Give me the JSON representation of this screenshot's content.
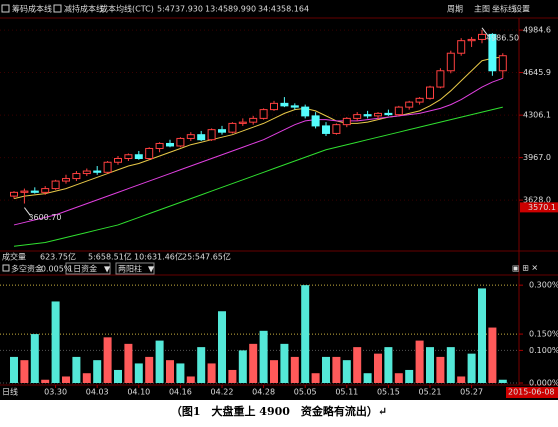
{
  "toolbar": {
    "items": [
      "筹码成本线",
      "减持成本线",
      "成本均线(CTC)"
    ],
    "right": [
      "周期",
      "主图",
      "坐标线",
      "设置"
    ]
  },
  "volume_row": {
    "label": "成交量",
    "items": [
      "623.75亿",
      "5:658.51亿",
      "10:631.46亿",
      "25:547.65亿"
    ]
  },
  "indicator_header": {
    "name": "多空资金",
    "value": "-0.005%",
    "selects": [
      "1日资金",
      "两阳柱"
    ]
  },
  "period_label": "日线",
  "cursor_label": "2015-06-08",
  "caption": "（图1　大盘重上 4900　资金略有流出）↵",
  "chart_data": [
    {
      "type": "candlestick",
      "categories": [
        null,
        null,
        null,
        null,
        "03.30",
        null,
        null,
        null,
        "04.03",
        null,
        null,
        null,
        "04.10",
        null,
        null,
        null,
        "04.16",
        null,
        null,
        null,
        "04.22",
        null,
        null,
        null,
        "04.28",
        null,
        null,
        null,
        "05.05",
        null,
        null,
        null,
        "05.11",
        null,
        null,
        null,
        "05.15",
        null,
        null,
        null,
        "05.21",
        null,
        null,
        null,
        "05.27",
        null,
        null,
        null
      ],
      "open": [
        3660,
        3690,
        3700,
        3690,
        3720,
        3780,
        3800,
        3840,
        3860,
        3850,
        3930,
        3960,
        3990,
        3960,
        4040,
        4080,
        4060,
        4120,
        4150,
        4110,
        4190,
        4170,
        4240,
        4250,
        4280,
        4350,
        4400,
        4380,
        4370,
        4300,
        4220,
        4160,
        4230,
        4280,
        4310,
        4300,
        4320,
        4310,
        4370,
        4410,
        4440,
        4530,
        4660,
        4800,
        4900,
        4910,
        4950,
        4660
      ],
      "high": [
        3700,
        3720,
        3730,
        3740,
        3790,
        3830,
        3860,
        3880,
        3900,
        3940,
        3980,
        4000,
        4020,
        4050,
        4090,
        4110,
        4130,
        4170,
        4180,
        4200,
        4220,
        4250,
        4280,
        4300,
        4360,
        4420,
        4450,
        4400,
        4390,
        4330,
        4250,
        4240,
        4290,
        4330,
        4340,
        4330,
        4350,
        4380,
        4420,
        4450,
        4540,
        4680,
        4820,
        4920,
        4930,
        4986.5,
        4960,
        4800
      ],
      "low": [
        3640,
        3600.7,
        3680,
        3670,
        3710,
        3760,
        3780,
        3820,
        3830,
        3840,
        3910,
        3940,
        3950,
        3950,
        4010,
        4050,
        4050,
        4100,
        4100,
        4100,
        4150,
        4160,
        4220,
        4230,
        4270,
        4340,
        4370,
        4350,
        4280,
        4200,
        4140,
        4150,
        4210,
        4260,
        4280,
        4270,
        4300,
        4300,
        4350,
        4390,
        4430,
        4520,
        4640,
        4780,
        4850,
        4880,
        4620,
        4600
      ],
      "close": [
        3690,
        3700,
        3690,
        3720,
        3780,
        3800,
        3840,
        3860,
        3850,
        3930,
        3960,
        3990,
        3960,
        4040,
        4080,
        4060,
        4120,
        4150,
        4110,
        4190,
        4170,
        4240,
        4250,
        4280,
        4350,
        4400,
        4380,
        4370,
        4300,
        4220,
        4160,
        4230,
        4280,
        4310,
        4300,
        4320,
        4310,
        4370,
        4410,
        4440,
        4530,
        4660,
        4800,
        4900,
        4910,
        4950,
        4660,
        4780
      ],
      "up_color": "#ff4040",
      "down_color": "#54fcfc",
      "series": [
        {
          "name": "5:4737.930",
          "color": "#e8c848",
          "values": [
            3640,
            3660,
            3670,
            3680,
            3700,
            3720,
            3750,
            3780,
            3810,
            3840,
            3870,
            3900,
            3920,
            3950,
            3980,
            4010,
            4040,
            4070,
            4090,
            4110,
            4130,
            4150,
            4180,
            4210,
            4240,
            4280,
            4320,
            4350,
            4360,
            4340,
            4300,
            4260,
            4240,
            4240,
            4250,
            4270,
            4290,
            4300,
            4320,
            4340,
            4380,
            4430,
            4500,
            4580,
            4660,
            4740,
            4760,
            4770
          ]
        },
        {
          "name": "13:4589.990",
          "color": "#e040e0",
          "values": [
            3430,
            3450,
            3470,
            3490,
            3510,
            3540,
            3570,
            3600,
            3630,
            3660,
            3690,
            3720,
            3750,
            3780,
            3810,
            3840,
            3870,
            3900,
            3930,
            3960,
            3990,
            4020,
            4050,
            4080,
            4110,
            4150,
            4190,
            4230,
            4260,
            4270,
            4270,
            4260,
            4260,
            4260,
            4270,
            4280,
            4290,
            4300,
            4310,
            4320,
            4340,
            4360,
            4390,
            4430,
            4480,
            4530,
            4570,
            4600
          ]
        },
        {
          "name": "34:4358.164",
          "color": "#30e030",
          "values": [
            3260,
            3270,
            3280,
            3290,
            3310,
            3330,
            3350,
            3370,
            3390,
            3410,
            3430,
            3460,
            3490,
            3520,
            3550,
            3580,
            3610,
            3640,
            3670,
            3700,
            3730,
            3760,
            3790,
            3820,
            3850,
            3880,
            3910,
            3940,
            3970,
            4000,
            4030,
            4050,
            4070,
            4090,
            4110,
            4130,
            4150,
            4170,
            4190,
            4210,
            4230,
            4250,
            4270,
            4290,
            4310,
            4330,
            4350,
            4370
          ]
        }
      ],
      "annotations": [
        {
          "text": "3600.70",
          "value": 3600.7
        },
        {
          "text": "4986.50",
          "value": 4986.5
        }
      ],
      "ylim": [
        3230,
        5065
      ],
      "yticks": [
        4984.6,
        4645.9,
        4306.1,
        {
          "value": 3967,
          "label": "3967.0"
        },
        {
          "value": 3628,
          "label": "3628.0"
        }
      ],
      "last_price": 3570.1,
      "grid": true
    },
    {
      "type": "bar",
      "values": [
        0.08,
        0.07,
        0.15,
        0.01,
        0.25,
        0.02,
        0.08,
        0.03,
        0.07,
        0.14,
        0.04,
        0.12,
        0.06,
        0.08,
        0.13,
        0.07,
        0.06,
        0.02,
        0.11,
        0.06,
        0.22,
        0.04,
        0.1,
        0.12,
        0.16,
        0.07,
        0.12,
        0.08,
        0.3,
        0.03,
        0.08,
        0.08,
        0.07,
        0.11,
        0.03,
        0.09,
        0.11,
        0.03,
        0.04,
        0.13,
        0.11,
        0.08,
        0.11,
        0.02,
        0.09,
        0.29,
        0.17,
        0.01
      ],
      "colors": [
        "#54e8d8",
        "#ff5a5a",
        "#54e8d8",
        "#ff5a5a",
        "#54e8d8",
        "#ff5a5a",
        "#54e8d8",
        "#ff5a5a",
        "#54e8d8",
        "#ff5a5a",
        "#54e8d8",
        "#ff5a5a",
        "#54e8d8",
        "#ff5a5a",
        "#54e8d8",
        "#ff5a5a",
        "#54e8d8",
        "#ff5a5a",
        "#54e8d8",
        "#ff5a5a",
        "#54e8d8",
        "#ff5a5a",
        "#54e8d8",
        "#ff5a5a",
        "#54e8d8",
        "#ff5a5a",
        "#54e8d8",
        "#ff5a5a",
        "#54e8d8",
        "#ff5a5a",
        "#54e8d8",
        "#ff5a5a",
        "#54e8d8",
        "#ff5a5a",
        "#54e8d8",
        "#ff5a5a",
        "#54e8d8",
        "#ff5a5a",
        "#54e8d8",
        "#ff5a5a",
        "#54e8d8",
        "#ff5a5a",
        "#54e8d8",
        "#ff5a5a",
        "#54e8d8",
        "#54e8d8",
        "#ff5a5a",
        "#54e8d8"
      ],
      "ylim": [
        0,
        0.325
      ],
      "yticks": [
        {
          "value": 0.3,
          "label": "0.300%"
        },
        {
          "value": 0.15,
          "label": "0.150%"
        },
        {
          "value": 0.1,
          "label": "0.100%"
        },
        {
          "value": 0,
          "label": "0.000%"
        }
      ],
      "grid_colors": [
        "#c8b040",
        "#c8b040",
        "#555555",
        "#555555"
      ],
      "grid": true
    }
  ]
}
